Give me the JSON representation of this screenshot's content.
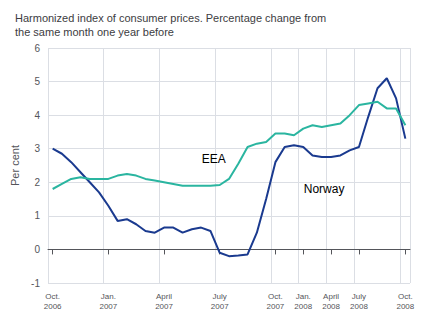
{
  "chart_data": {
    "type": "line",
    "title": "Harmonized index of consumer prices. Percentage change from\nthe same month one year before",
    "ylabel": "Per cent",
    "categories": [
      "Oct.\n2006",
      null,
      null,
      null,
      null,
      null,
      "Jan.\n2007",
      null,
      null,
      null,
      null,
      null,
      "April\n2007",
      null,
      null,
      null,
      null,
      null,
      "July\n2007",
      null,
      null,
      null,
      null,
      null,
      "Oct.\n2007",
      null,
      null,
      "Jan.\n2008",
      null,
      null,
      "April\n2008",
      null,
      null,
      "July\n2008",
      null,
      null,
      null,
      null,
      "Oct.\n2008"
    ],
    "series": [
      {
        "name": "Norway",
        "color": "#1a3a8f",
        "values": [
          3.0,
          2.85,
          2.6,
          2.3,
          2.0,
          1.7,
          1.3,
          0.85,
          0.9,
          0.75,
          0.55,
          0.5,
          0.65,
          0.65,
          0.5,
          0.6,
          0.65,
          0.55,
          -0.1,
          -0.2,
          -0.18,
          -0.15,
          0.5,
          1.5,
          2.6,
          3.05,
          3.1,
          3.05,
          2.8,
          2.75,
          2.75,
          2.8,
          2.95,
          3.05,
          3.95,
          4.8,
          5.1,
          4.5,
          3.3
        ]
      },
      {
        "name": "EEA",
        "color": "#2ab5a0",
        "values": [
          1.8,
          1.95,
          2.1,
          2.15,
          2.1,
          2.1,
          2.1,
          2.2,
          2.25,
          2.2,
          2.1,
          2.05,
          2.0,
          1.95,
          1.9,
          1.9,
          1.9,
          1.9,
          1.92,
          2.1,
          2.55,
          3.05,
          3.15,
          3.2,
          3.45,
          3.45,
          3.4,
          3.6,
          3.7,
          3.65,
          3.7,
          3.75,
          4.0,
          4.3,
          4.35,
          4.4,
          4.2,
          4.2,
          3.7
        ]
      }
    ],
    "annotations": [
      {
        "text": "EEA",
        "x": 16,
        "y": 2.7
      },
      {
        "text": "Norway",
        "x": 27,
        "y": 1.8
      }
    ],
    "ylim": [
      -1,
      6
    ],
    "yticks": [
      -1,
      0,
      1,
      2,
      3,
      4,
      5,
      6
    ],
    "grid": true
  }
}
